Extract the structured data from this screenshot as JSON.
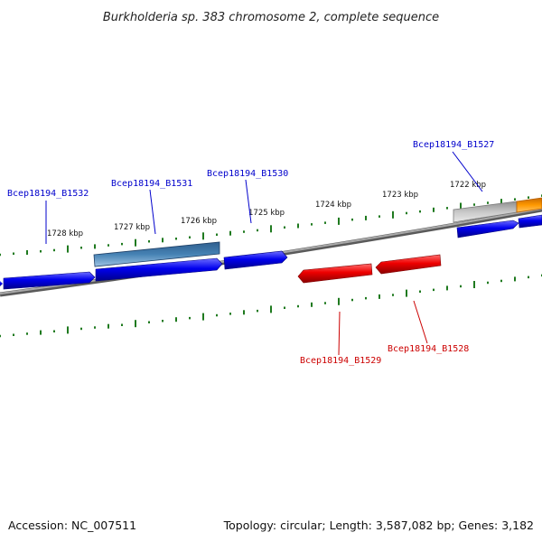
{
  "title": "Burkholderia sp. 383 chromosome 2, complete sequence",
  "footer": {
    "accession": "Accession: NC_007511",
    "summary": "Topology: circular; Length: 3,587,082 bp; Genes: 3,182"
  },
  "colors": {
    "tick": "#1f7a1f",
    "backbone": "#808080",
    "forward_gene": "#0000ee",
    "reverse_gene": "#ee0000",
    "forward_label": "#0000cc",
    "reverse_label": "#cc0000",
    "selected_gene": "#4682b4",
    "gray_feature": "#c8c8c8",
    "orange_feature": "#ff9900"
  },
  "scale": {
    "unit": "kbp",
    "labels": [
      "1722 kbp",
      "1723 kbp",
      "1724 kbp",
      "1725 kbp",
      "1726 kbp",
      "1727 kbp",
      "1728 kbp"
    ]
  },
  "genes": [
    {
      "label": "Bcep18194_B1527",
      "strand": "forward"
    },
    {
      "label": "Bcep18194_B1528",
      "strand": "reverse"
    },
    {
      "label": "Bcep18194_B1529",
      "strand": "reverse"
    },
    {
      "label": "Bcep18194_B1530",
      "strand": "forward"
    },
    {
      "label": "Bcep18194_B1531",
      "strand": "forward",
      "highlighted": true
    },
    {
      "label": "Bcep18194_B1532",
      "strand": "forward"
    }
  ]
}
